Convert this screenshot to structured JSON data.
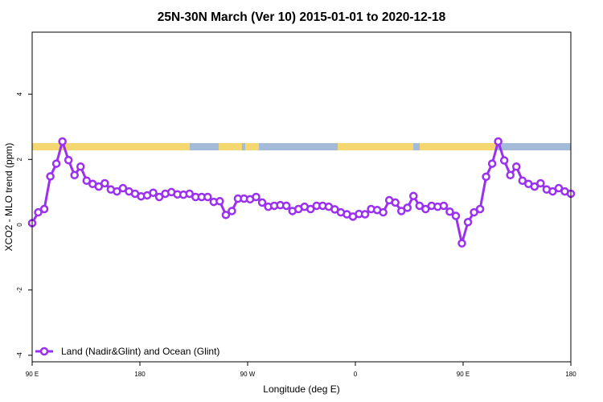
{
  "chart_data": {
    "type": "line",
    "title": "25N-30N March (Ver 10)   2015-01-01 to 2020-12-18",
    "xlabel": "Longitude (deg E)",
    "ylabel": "XCO2 - MLO trend (ppm)",
    "ylim": [
      -4.2,
      5.9
    ],
    "yticks": [
      -4,
      -2,
      0,
      2,
      4
    ],
    "yticklabels": [
      "-4",
      "-2",
      "0",
      "2",
      "4"
    ],
    "xticks": [
      "90 E",
      "180",
      "90 W",
      "0",
      "90 E",
      "180"
    ],
    "legend": {
      "position": "bottom-left",
      "label": "Land (Nadir&Glint) and Ocean (Glint)"
    },
    "colors": {
      "series": "#9b30f0",
      "ocean": "#a3bbd8",
      "land": "#f5d772"
    },
    "series": [
      {
        "name": "Land (Nadir&Glint) and Ocean (Glint)",
        "values": [
          0.05,
          0.38,
          0.48,
          1.48,
          1.87,
          2.55,
          1.98,
          1.52,
          1.78,
          1.35,
          1.25,
          1.17,
          1.27,
          1.08,
          1.02,
          1.12,
          1.02,
          0.95,
          0.87,
          0.9,
          0.98,
          0.85,
          0.95,
          1.0,
          0.93,
          0.92,
          0.95,
          0.85,
          0.85,
          0.85,
          0.7,
          0.72,
          0.3,
          0.42,
          0.8,
          0.8,
          0.78,
          0.85,
          0.68,
          0.55,
          0.58,
          0.6,
          0.58,
          0.42,
          0.48,
          0.55,
          0.48,
          0.58,
          0.58,
          0.55,
          0.47,
          0.38,
          0.32,
          0.25,
          0.33,
          0.32,
          0.48,
          0.45,
          0.38,
          0.75,
          0.68,
          0.42,
          0.52,
          0.88,
          0.58,
          0.48,
          0.58,
          0.55,
          0.58,
          0.4,
          0.27,
          -0.57,
          0.08,
          0.38,
          0.48,
          1.47,
          1.87,
          2.55,
          1.97,
          1.52,
          1.78,
          1.35,
          1.25,
          1.17,
          1.27,
          1.08,
          1.02,
          1.12,
          1.02,
          0.95
        ]
      }
    ]
  }
}
